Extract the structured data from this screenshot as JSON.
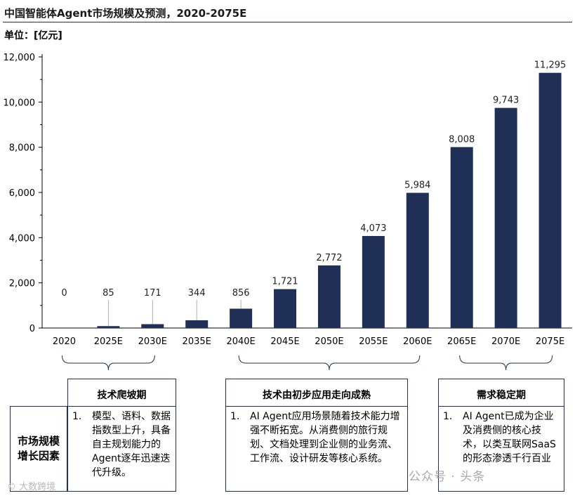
{
  "title": "中国智能体Agent市场规模及预测，2020-2075E",
  "unit_label": "单位：[亿元]",
  "chart_data": {
    "type": "bar",
    "categories": [
      "2020",
      "2025E",
      "2030E",
      "2035E",
      "2040E",
      "2045E",
      "2050E",
      "2055E",
      "2060E",
      "2065E",
      "2070E",
      "2075E"
    ],
    "values": [
      0,
      85,
      171,
      344,
      856,
      1721,
      2772,
      4073,
      5984,
      8008,
      9743,
      11295
    ],
    "value_labels": [
      "0",
      "85",
      "171",
      "344",
      "856",
      "1,721",
      "2,772",
      "4,073",
      "5,984",
      "8,008",
      "9,743",
      "11,295"
    ],
    "y_ticks": [
      "0",
      "2,000",
      "4,000",
      "6,000",
      "8,000",
      "10,000",
      "12,000"
    ],
    "y_tick_values": [
      0,
      2000,
      4000,
      6000,
      8000,
      10000,
      12000
    ],
    "ylim": [
      0,
      12000
    ],
    "bar_color": "#1f2f56",
    "grid": false,
    "title": "中国智能体Agent市场规模及预测，2020-2075E",
    "ylabel": "单位：[亿元]"
  },
  "factors_label": "市场规模增长因素",
  "phases": [
    {
      "title": "技术爬坡期",
      "num": "1.",
      "text": "模型、语料、数据指数型上升，具备自主规划能力的Agent逐年迅速迭代升级。"
    },
    {
      "title": "技术由初步应用走向成熟",
      "num": "1.",
      "text": "AI Agent应用场景随着技术能力增强不断拓宽。从消费侧的旅行规划、文档处理到企业侧的业务流、工作流、设计研发等核心系统。"
    },
    {
      "title": "需求稳定期",
      "num": "1.",
      "text": "AI Agent已成为企业及消费侧的核心技术，以类互联网SaaS的形态渗透千行百业"
    }
  ],
  "watermark_left": "© 大数跨境",
  "watermark_right": "公众号 · 头条"
}
